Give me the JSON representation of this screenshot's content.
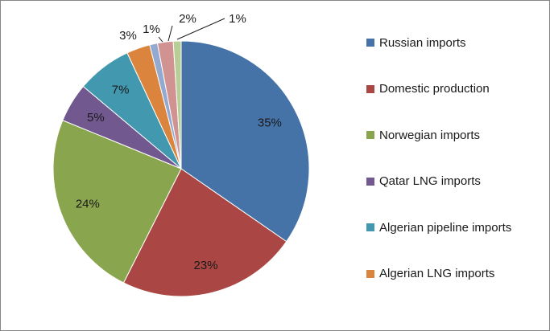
{
  "chart_data": {
    "type": "pie",
    "slices": [
      {
        "name": "Russian imports",
        "value": 35,
        "label": "35%",
        "color": "#4573A7"
      },
      {
        "name": "Domestic production",
        "value": 23,
        "label": "23%",
        "color": "#AA4643"
      },
      {
        "name": "Norwegian imports",
        "value": 24,
        "label": "24%",
        "color": "#89A54E"
      },
      {
        "name": "Qatar LNG imports",
        "value": 5,
        "label": "5%",
        "color": "#71588F"
      },
      {
        "name": "Algerian pipeline imports",
        "value": 7,
        "label": "7%",
        "color": "#4198AF"
      },
      {
        "name": "Algerian LNG imports",
        "value": 3,
        "label": "3%",
        "color": "#DB843D"
      },
      {
        "name": "",
        "value": 1,
        "label": "1%",
        "color": "#93A9CF"
      },
      {
        "name": "",
        "value": 2,
        "label": "2%",
        "color": "#D19392"
      },
      {
        "name": "",
        "value": 1,
        "label": "1%",
        "color": "#B9CD96"
      }
    ],
    "legend": {
      "placement": "right",
      "items": [
        "Russian imports",
        "Domestic production",
        "Norwegian imports",
        "Qatar LNG imports",
        "Algerian pipeline imports",
        "Algerian LNG imports"
      ]
    }
  }
}
